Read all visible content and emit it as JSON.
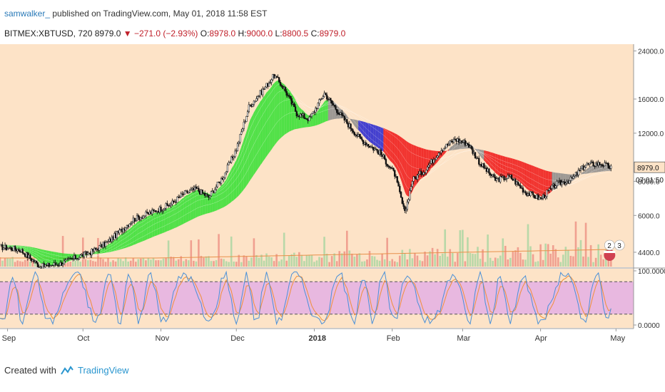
{
  "header": {
    "author": "samwalker_",
    "published_text": " published on TradingView.com, May 01, 2018 11:58 EST",
    "symbol": "BITMEX:XBTUSD, 720",
    "last": "8979.0",
    "change": "−271.0 (−2.93%)",
    "open_label": "O:",
    "open": "8978.0",
    "high_label": "H:",
    "high": "9000.0",
    "low_label": "L:",
    "low": "8800.5",
    "close_label": "C:",
    "close": "8979.0"
  },
  "footer": {
    "created_with": "Created with",
    "brand": "TradingView"
  },
  "colors": {
    "background": "#fde3c7",
    "stoch_band": "#e8b8e0",
    "k_line": "#4a90d8",
    "d_line": "#f0903a",
    "ema_up_fast": "#36d8f0",
    "ema_up_slow": "#2ee02e",
    "ema_down_fast": "#2020d0",
    "ema_down_slow": "#ee1111",
    "ema_neutral": "#8a8a8a",
    "volume_up": "#b8d8a8",
    "volume_down": "#f0a090",
    "current_price_tag": "#555555"
  },
  "chart_data": {
    "type": "line",
    "title": "BITMEX:XBTUSD, 720",
    "scale": "log",
    "ylim": [
      3900,
      24800
    ],
    "y_ticks": [
      "24000.0",
      "16000.0",
      "12000.0",
      "8000.0",
      "6000.0",
      "4400.0"
    ],
    "y_tick_values": [
      24000,
      16000,
      12000,
      8000,
      6000,
      4400
    ],
    "current_price_label": "8979.0",
    "countdown_label": "07:01:50",
    "x_labels": [
      "Sep",
      "Oct",
      "Nov",
      "Dec",
      "2018",
      "Feb",
      "Mar",
      "Apr",
      "May"
    ],
    "x_label_days": [
      0,
      30,
      61,
      91,
      122,
      153,
      181,
      212,
      242
    ],
    "x_range_days": [
      -3,
      249
    ],
    "price_series": [
      {
        "d": -3,
        "p": 4600
      },
      {
        "d": 5,
        "p": 4500
      },
      {
        "d": 13,
        "p": 3900
      },
      {
        "d": 21,
        "p": 4000
      },
      {
        "d": 27,
        "p": 4200
      },
      {
        "d": 33,
        "p": 4400
      },
      {
        "d": 40,
        "p": 4800
      },
      {
        "d": 50,
        "p": 5800
      },
      {
        "d": 58,
        "p": 6200
      },
      {
        "d": 65,
        "p": 6600
      },
      {
        "d": 70,
        "p": 7200
      },
      {
        "d": 75,
        "p": 7500
      },
      {
        "d": 80,
        "p": 7000
      },
      {
        "d": 86,
        "p": 8400
      },
      {
        "d": 91,
        "p": 10500
      },
      {
        "d": 96,
        "p": 15000
      },
      {
        "d": 101,
        "p": 17000
      },
      {
        "d": 106,
        "p": 19500
      },
      {
        "d": 110,
        "p": 17500
      },
      {
        "d": 115,
        "p": 14200
      },
      {
        "d": 120,
        "p": 13500
      },
      {
        "d": 126,
        "p": 16800
      },
      {
        "d": 133,
        "p": 13800
      },
      {
        "d": 140,
        "p": 11500
      },
      {
        "d": 144,
        "p": 10800
      },
      {
        "d": 148,
        "p": 10200
      },
      {
        "d": 154,
        "p": 8500
      },
      {
        "d": 158,
        "p": 6100
      },
      {
        "d": 161,
        "p": 8100
      },
      {
        "d": 166,
        "p": 8800
      },
      {
        "d": 172,
        "p": 10400
      },
      {
        "d": 178,
        "p": 11400
      },
      {
        "d": 183,
        "p": 11000
      },
      {
        "d": 188,
        "p": 9300
      },
      {
        "d": 194,
        "p": 8100
      },
      {
        "d": 200,
        "p": 8300
      },
      {
        "d": 206,
        "p": 7300
      },
      {
        "d": 212,
        "p": 6900
      },
      {
        "d": 218,
        "p": 7800
      },
      {
        "d": 224,
        "p": 8100
      },
      {
        "d": 230,
        "p": 9200
      },
      {
        "d": 236,
        "p": 9300
      },
      {
        "d": 240,
        "p": 8979
      }
    ],
    "ema_ribbon_periods": [
      5,
      8,
      13,
      21,
      34,
      55
    ],
    "ribbon_colors": [
      {
        "from": -3,
        "to": 28,
        "color": "#2ee02e"
      },
      {
        "from": 28,
        "to": 110,
        "color": "#2ee02e"
      },
      {
        "from": 110,
        "to": 128,
        "color": "#2ee02e"
      },
      {
        "from": 128,
        "to": 140,
        "color": "#8a8a8a"
      },
      {
        "from": 140,
        "to": 150,
        "color": "#2020d0"
      },
      {
        "from": 150,
        "to": 176,
        "color": "#ee1111"
      },
      {
        "from": 176,
        "to": 190,
        "color": "#8a8a8a"
      },
      {
        "from": 190,
        "to": 217,
        "color": "#ee1111"
      },
      {
        "from": 217,
        "to": 241,
        "color": "#8a8a8a"
      }
    ],
    "stoch_ylim": [
      0,
      100
    ],
    "stoch_ticks": [
      "100.0000",
      "0.0000"
    ],
    "stoch_tick_values": [
      100,
      0
    ],
    "stoch_upper_band": 80,
    "stoch_lower_band": 20,
    "event_badges": [
      "2",
      "3"
    ]
  }
}
